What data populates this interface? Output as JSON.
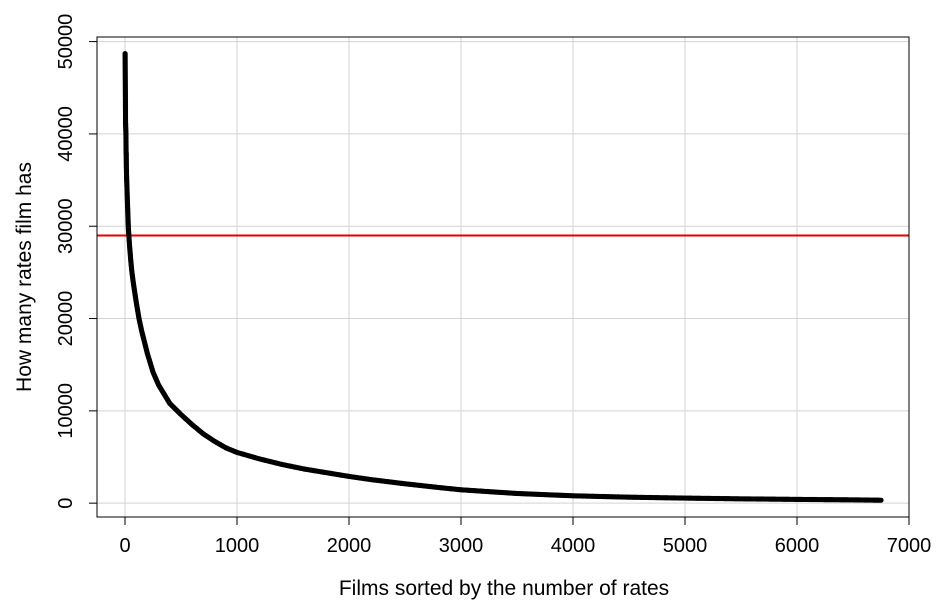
{
  "chart_data": {
    "type": "scatter",
    "title": "",
    "xlabel": "Films sorted by the number of rates",
    "ylabel": "How many rates film has",
    "xlim": [
      -250,
      7000
    ],
    "ylim": [
      -1500,
      50500
    ],
    "x_ticks": [
      0,
      1000,
      2000,
      3000,
      4000,
      5000,
      6000,
      7000
    ],
    "x_tick_labels": [
      "0",
      "1000",
      "2000",
      "3000",
      "4000",
      "5000",
      "6000",
      "7000"
    ],
    "y_ticks": [
      0,
      10000,
      20000,
      30000,
      40000,
      50000
    ],
    "y_tick_labels": [
      "0",
      "10000",
      "20000",
      "30000",
      "40000",
      "50000"
    ],
    "grid": true,
    "point_color": "#000000",
    "reference_line": {
      "orientation": "horizontal",
      "y": 29000,
      "color": "#e00000"
    },
    "series": [
      {
        "points": [
          [
            1,
            48700
          ],
          [
            5,
            41300
          ],
          [
            6,
            40800
          ],
          [
            8,
            40100
          ],
          [
            9,
            38900
          ],
          [
            10,
            38000
          ],
          [
            11,
            37800
          ],
          [
            12,
            36500
          ],
          [
            14,
            35500
          ],
          [
            15,
            35000
          ],
          [
            18,
            34000
          ],
          [
            20,
            33200
          ],
          [
            22,
            32500
          ],
          [
            25,
            31500
          ],
          [
            28,
            30500
          ],
          [
            30,
            29800
          ],
          [
            40,
            28000
          ],
          [
            50,
            26500
          ],
          [
            60,
            25200
          ],
          [
            75,
            23800
          ],
          [
            100,
            21800
          ],
          [
            125,
            20000
          ],
          [
            150,
            18600
          ],
          [
            200,
            16200
          ],
          [
            250,
            14200
          ],
          [
            300,
            12800
          ],
          [
            400,
            10800
          ],
          [
            500,
            9600
          ],
          [
            600,
            8500
          ],
          [
            700,
            7500
          ],
          [
            800,
            6700
          ],
          [
            900,
            6000
          ],
          [
            1000,
            5500
          ],
          [
            1200,
            4800
          ],
          [
            1400,
            4200
          ],
          [
            1600,
            3700
          ],
          [
            1800,
            3300
          ],
          [
            2000,
            2900
          ],
          [
            2200,
            2550
          ],
          [
            2500,
            2100
          ],
          [
            2800,
            1700
          ],
          [
            3000,
            1450
          ],
          [
            3500,
            1050
          ],
          [
            4000,
            800
          ],
          [
            4500,
            650
          ],
          [
            5000,
            550
          ],
          [
            5500,
            470
          ],
          [
            6000,
            410
          ],
          [
            6500,
            360
          ],
          [
            6750,
            320
          ]
        ]
      }
    ]
  }
}
